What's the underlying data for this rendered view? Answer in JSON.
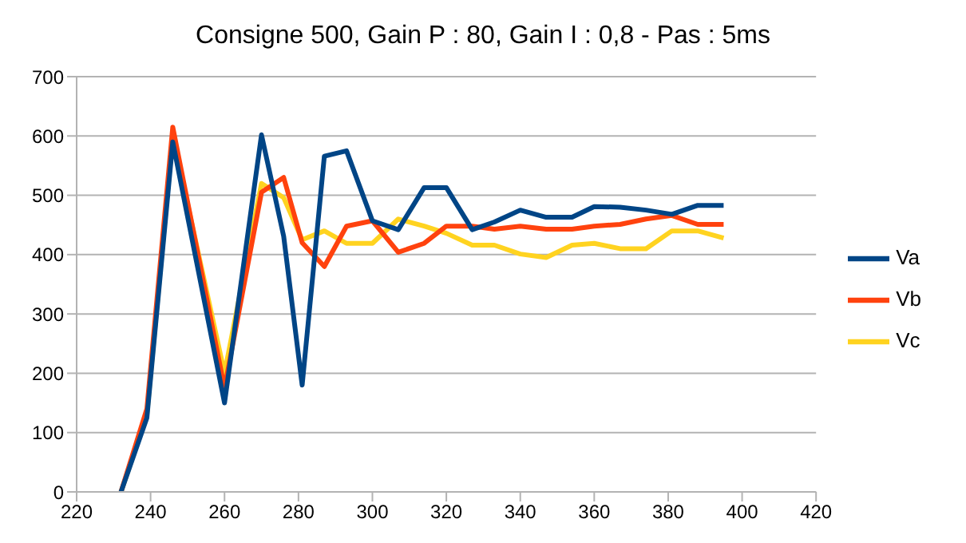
{
  "chart_data": {
    "type": "line",
    "title": "Consigne 500, Gain P : 80, Gain I : 0,8 - Pas : 5ms",
    "x": [
      232,
      239,
      246,
      260,
      270,
      276,
      281,
      287,
      293,
      300,
      307,
      314,
      320,
      327,
      333,
      340,
      347,
      354,
      360,
      367,
      374,
      381,
      388,
      395
    ],
    "series": [
      {
        "name": "Va",
        "color": "#004586",
        "values": [
          0,
          125,
          590,
          150,
          602,
          431,
          180,
          566,
          575,
          457,
          442,
          513,
          513,
          442,
          455,
          475,
          463,
          463,
          481,
          480,
          475,
          468,
          483,
          483
        ]
      },
      {
        "name": "Vb",
        "color": "#ff420e",
        "values": [
          0,
          140,
          615,
          175,
          505,
          530,
          420,
          380,
          448,
          457,
          404,
          419,
          448,
          448,
          443,
          448,
          443,
          443,
          448,
          451,
          460,
          466,
          451,
          451
        ]
      },
      {
        "name": "Vc",
        "color": "#ffd320",
        "values": [
          0,
          130,
          600,
          200,
          520,
          496,
          425,
          440,
          419,
          419,
          460,
          448,
          436,
          416,
          416,
          401,
          395,
          416,
          419,
          410,
          410,
          440,
          440,
          428
        ]
      }
    ],
    "xlim": [
      220,
      420
    ],
    "xticks": [
      220,
      240,
      260,
      280,
      300,
      320,
      340,
      360,
      380,
      400,
      420
    ],
    "ylim": [
      0,
      700
    ],
    "yticks": [
      0,
      100,
      200,
      300,
      400,
      500,
      600,
      700
    ],
    "grid": "y",
    "legend": "right",
    "marker": "none",
    "line_style": "solid"
  }
}
